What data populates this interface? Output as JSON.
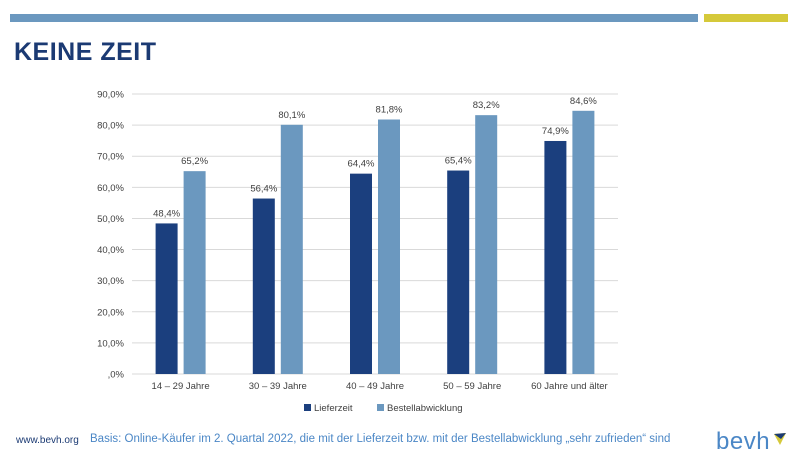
{
  "title": "KEINE ZEIT",
  "footer": {
    "url": "www.bevh.org",
    "note": "Basis: Online-Käufer im 2. Quartal 2022, die mit der Lieferzeit bzw. mit der Bestellabwicklung „sehr zufrieden“ sind",
    "logo_text": "bevh"
  },
  "colors": {
    "accent_blue": "#6b98bf",
    "accent_yellow": "#d5c93a",
    "title": "#1b3a73",
    "lieferzeit": "#1b3f7e",
    "bestellabwicklung": "#6b98bf"
  },
  "chart_data": {
    "type": "bar",
    "categories": [
      "14 – 29 Jahre",
      "30 – 39 Jahre",
      "40 – 49 Jahre",
      "50 – 59 Jahre",
      "60 Jahre und älter"
    ],
    "series": [
      {
        "name": "Lieferzeit",
        "values": [
          48.4,
          56.4,
          64.4,
          65.4,
          74.9
        ],
        "labels": [
          "48,4%",
          "56,4%",
          "64,4%",
          "65,4%",
          "74,9%"
        ]
      },
      {
        "name": "Bestellabwicklung",
        "values": [
          65.2,
          80.1,
          81.8,
          83.2,
          84.6
        ],
        "labels": [
          "65,2%",
          "80,1%",
          "81,8%",
          "83,2%",
          "84,6%"
        ]
      }
    ],
    "ylim": [
      0,
      90
    ],
    "yticks": [
      0,
      10,
      20,
      30,
      40,
      50,
      60,
      70,
      80,
      90
    ],
    "ytick_labels": [
      ",0%",
      "10,0%",
      "20,0%",
      "30,0%",
      "40,0%",
      "50,0%",
      "60,0%",
      "70,0%",
      "80,0%",
      "90,0%"
    ],
    "grid": true,
    "legend": "bottom-center"
  }
}
